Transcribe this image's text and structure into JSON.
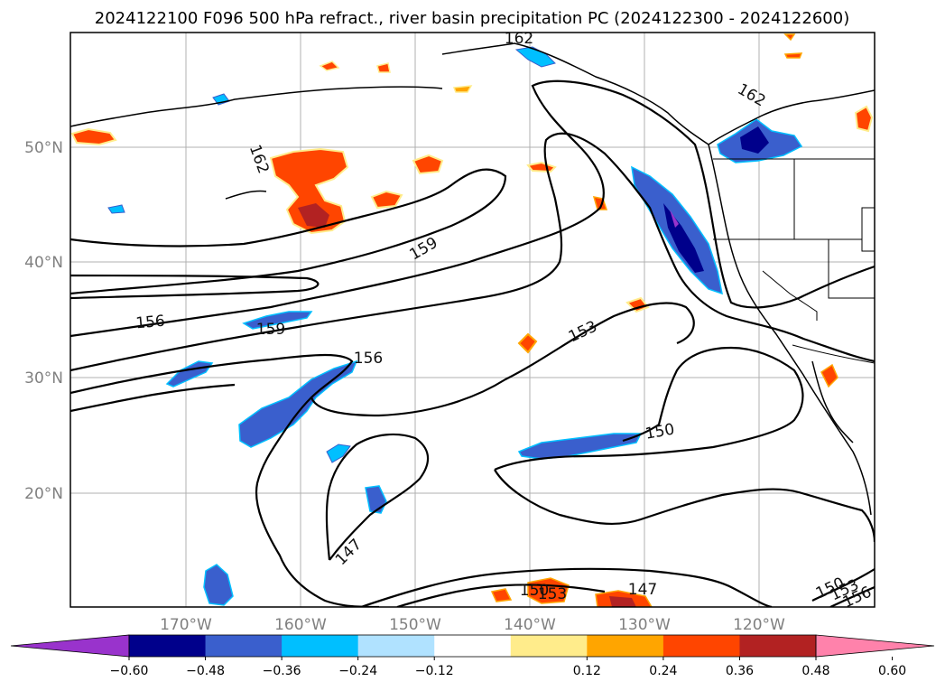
{
  "title": "2024122100 F096 500 hPa refract., river basin precipitation PC (2024122300 - 2024122600)",
  "map": {
    "lon_labels": [
      "170°W",
      "160°W",
      "150°W",
      "140°W",
      "130°W",
      "120°W"
    ],
    "lat_labels": [
      "50°N",
      "40°N",
      "30°N",
      "20°N"
    ],
    "contour_labels": [
      "162",
      "162",
      "162",
      "159",
      "159",
      "156",
      "156",
      "153",
      "153",
      "150",
      "150",
      "150",
      "147",
      "147",
      "153",
      "156"
    ],
    "colors": {
      "coast": "#000000",
      "grid": "#b0b0b0",
      "contour": "#000000"
    }
  },
  "colorbar": {
    "tick_labels": [
      "−0.60",
      "−0.48",
      "−0.36",
      "−0.24",
      "−0.12",
      "0.12",
      "0.24",
      "0.36",
      "0.48",
      "0.60"
    ],
    "colors": [
      "#9933cc",
      "#00008b",
      "#3a5fcd",
      "#00bfff",
      "#b0e2ff",
      "#ffffff",
      "#ffec8b",
      "#ffa500",
      "#ff4500",
      "#b22222",
      "#ff82ab"
    ]
  }
}
